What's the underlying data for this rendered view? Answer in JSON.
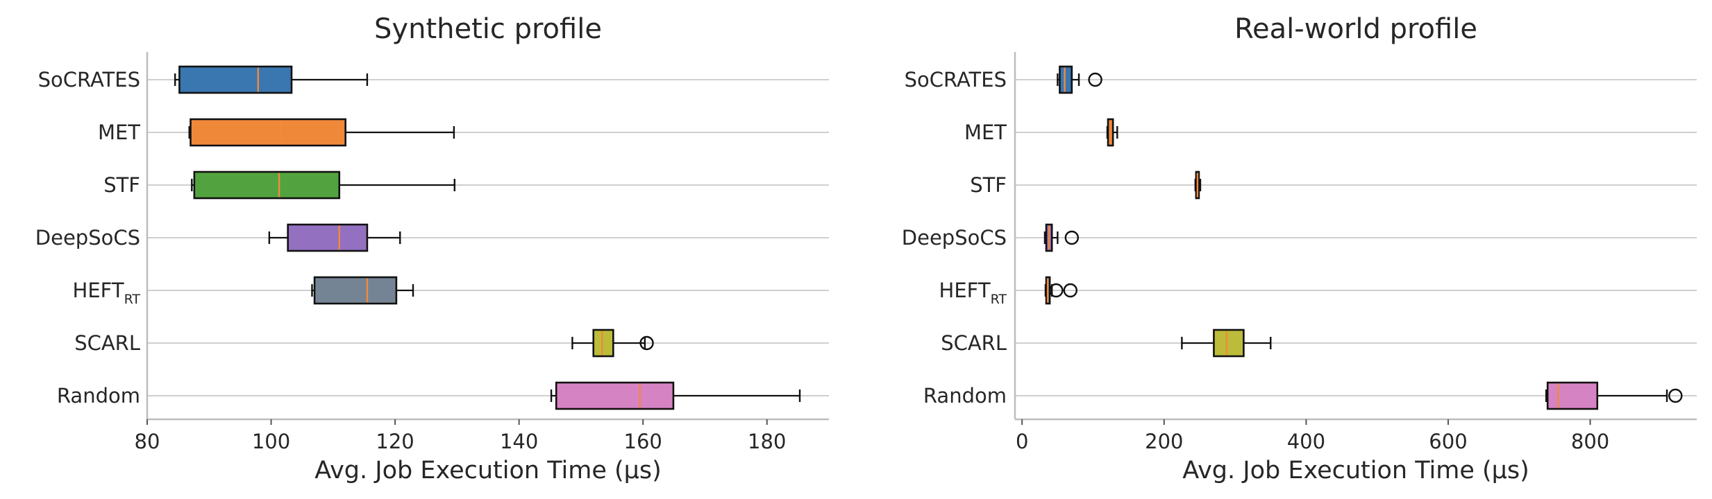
{
  "chart_data": [
    {
      "type": "boxplot",
      "orientation": "horizontal",
      "title": "Synthetic profile",
      "xlabel": "Avg. Job Execution Time (μs)",
      "xlim": [
        80,
        190
      ],
      "xticks": [
        80,
        100,
        120,
        140,
        160,
        180
      ],
      "grid": "horizontal",
      "categories": [
        {
          "name": "SoCRATES",
          "sub": "",
          "color": "#3a76b0",
          "whislo": 84.5,
          "q1": 85.2,
          "med": 97.9,
          "q3": 103.3,
          "whishi": 115.5,
          "fliers": []
        },
        {
          "name": "MET",
          "sub": "",
          "color": "#f0883a",
          "whislo": 86.8,
          "q1": 87.0,
          "med": 101.6,
          "q3": 112.0,
          "whishi": 129.5,
          "fliers": []
        },
        {
          "name": "STF",
          "sub": "",
          "color": "#52a340",
          "whislo": 87.2,
          "q1": 87.6,
          "med": 101.3,
          "q3": 111.0,
          "whishi": 129.6,
          "fliers": []
        },
        {
          "name": "DeepSoCS",
          "sub": "",
          "color": "#9370c0",
          "whislo": 99.7,
          "q1": 102.7,
          "med": 111.0,
          "q3": 115.5,
          "whishi": 120.8,
          "fliers": []
        },
        {
          "name": "HEFT",
          "sub": "RT",
          "color": "#758494",
          "whislo": 106.6,
          "q1": 107.0,
          "med": 115.5,
          "q3": 120.2,
          "whishi": 122.9,
          "fliers": []
        },
        {
          "name": "SCARL",
          "sub": "",
          "color": "#bcbc3a",
          "whislo": 148.6,
          "q1": 152.0,
          "med": 153.4,
          "q3": 155.2,
          "whishi": 160.3,
          "fliers": [
            160.6
          ]
        },
        {
          "name": "Random",
          "sub": "",
          "color": "#d683c4",
          "whislo": 145.2,
          "q1": 146.0,
          "med": 159.5,
          "q3": 164.9,
          "whishi": 185.3,
          "fliers": []
        }
      ]
    },
    {
      "type": "boxplot",
      "orientation": "horizontal",
      "title": "Real-world profile",
      "xlabel": "Avg. Job Execution Time (μs)",
      "xlim": [
        -10,
        950
      ],
      "xticks": [
        0,
        200,
        400,
        600,
        800
      ],
      "grid": "horizontal",
      "categories": [
        {
          "name": "SoCRATES",
          "sub": "",
          "color": "#3a76b0",
          "whislo": 50,
          "q1": 53,
          "med": 60,
          "q3": 70,
          "whishi": 80,
          "fliers": [
            103
          ]
        },
        {
          "name": "MET",
          "sub": "",
          "color": "#f0883a",
          "whislo": 120,
          "q1": 121,
          "med": 124,
          "q3": 128,
          "whishi": 134,
          "fliers": []
        },
        {
          "name": "STF",
          "sub": "",
          "color": "#52a340",
          "whislo": 244,
          "q1": 245,
          "med": 247,
          "q3": 249,
          "whishi": 251,
          "fliers": []
        },
        {
          "name": "DeepSoCS",
          "sub": "",
          "color": "#9370c0",
          "whislo": 32,
          "q1": 34,
          "med": 38,
          "q3": 42,
          "whishi": 50,
          "fliers": [
            70
          ]
        },
        {
          "name": "HEFT",
          "sub": "RT",
          "color": "#758494",
          "whislo": 33,
          "q1": 34,
          "med": 36,
          "q3": 39,
          "whishi": 42,
          "fliers": [
            48,
            68
          ]
        },
        {
          "name": "SCARL",
          "sub": "",
          "color": "#bcbc3a",
          "whislo": 225,
          "q1": 270,
          "med": 288,
          "q3": 312,
          "whishi": 350,
          "fliers": []
        },
        {
          "name": "Random",
          "sub": "",
          "color": "#d683c4",
          "whislo": 738,
          "q1": 740,
          "med": 755,
          "q3": 810,
          "whishi": 908,
          "fliers": [
            920
          ]
        }
      ]
    }
  ]
}
